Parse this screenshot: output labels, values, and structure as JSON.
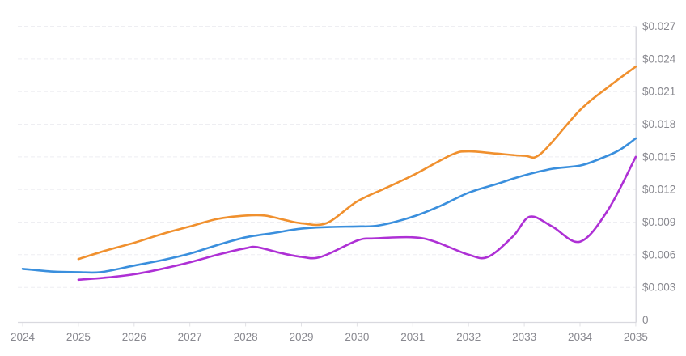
{
  "chart_data": {
    "type": "line",
    "title": "",
    "legend": {
      "visible": false
    },
    "grid": {
      "horizontal": true,
      "vertical": false,
      "style": "dashed"
    },
    "x_axis": {
      "tick_labels": [
        "2024",
        "2025",
        "2026",
        "2027",
        "2028",
        "2029",
        "2030",
        "2031",
        "2032",
        "2033",
        "2034",
        "2035"
      ],
      "tick_values": [
        2024,
        2025,
        2026,
        2027,
        2028,
        2029,
        2030,
        2031,
        2032,
        2033,
        2034,
        2035
      ],
      "range": [
        2024,
        2035
      ]
    },
    "y_axis": {
      "side": "right",
      "tick_labels": [
        "0",
        "$0.003",
        "$0.006",
        "$0.009",
        "$0.012",
        "$0.015",
        "$0.018",
        "$0.021",
        "$0.024",
        "$0.027"
      ],
      "tick_values": [
        0,
        0.003,
        0.006,
        0.009,
        0.012,
        0.015,
        0.018,
        0.021,
        0.024,
        0.027
      ],
      "range": [
        0,
        0.027
      ],
      "unit": "$"
    },
    "series": [
      {
        "name": "orange",
        "color": "#f0902e",
        "points": [
          [
            2025,
            0.0056
          ],
          [
            2025.5,
            0.0064
          ],
          [
            2026,
            0.0071
          ],
          [
            2026.5,
            0.0079
          ],
          [
            2027,
            0.0086
          ],
          [
            2027.5,
            0.0093
          ],
          [
            2028,
            0.0096
          ],
          [
            2028.35,
            0.0096
          ],
          [
            2028.7,
            0.0092
          ],
          [
            2029,
            0.0089
          ],
          [
            2029.45,
            0.0089
          ],
          [
            2030,
            0.0109
          ],
          [
            2030.5,
            0.0121
          ],
          [
            2031,
            0.0133
          ],
          [
            2031.7,
            0.0152
          ],
          [
            2032,
            0.0155
          ],
          [
            2032.5,
            0.0153
          ],
          [
            2033,
            0.0151
          ],
          [
            2033.3,
            0.0153
          ],
          [
            2034,
            0.0193
          ],
          [
            2034.5,
            0.0214
          ],
          [
            2035,
            0.0233
          ]
        ]
      },
      {
        "name": "blue",
        "color": "#3a8fdd",
        "points": [
          [
            2024,
            0.0047
          ],
          [
            2024.55,
            0.00445
          ],
          [
            2025,
            0.0044
          ],
          [
            2025.4,
            0.0044
          ],
          [
            2026,
            0.005
          ],
          [
            2026.5,
            0.0055
          ],
          [
            2027,
            0.0061
          ],
          [
            2027.5,
            0.0069
          ],
          [
            2028,
            0.0076
          ],
          [
            2028.5,
            0.008
          ],
          [
            2029,
            0.0084
          ],
          [
            2029.5,
            0.00855
          ],
          [
            2030,
            0.0086
          ],
          [
            2030.4,
            0.0087
          ],
          [
            2031,
            0.0095
          ],
          [
            2031.5,
            0.0105
          ],
          [
            2032,
            0.0117
          ],
          [
            2032.5,
            0.0125
          ],
          [
            2033,
            0.0133
          ],
          [
            2033.5,
            0.0139
          ],
          [
            2034,
            0.0142
          ],
          [
            2034.35,
            0.0148
          ],
          [
            2034.7,
            0.0156
          ],
          [
            2035,
            0.0167
          ]
        ]
      },
      {
        "name": "purple",
        "color": "#ae30d5",
        "points": [
          [
            2025,
            0.0037
          ],
          [
            2025.5,
            0.0039
          ],
          [
            2026,
            0.0042
          ],
          [
            2026.5,
            0.0047
          ],
          [
            2027,
            0.0053
          ],
          [
            2027.5,
            0.006
          ],
          [
            2028,
            0.0066
          ],
          [
            2028.2,
            0.0067
          ],
          [
            2028.6,
            0.0062
          ],
          [
            2029,
            0.0058
          ],
          [
            2029.35,
            0.0058
          ],
          [
            2030,
            0.0073
          ],
          [
            2030.3,
            0.0075
          ],
          [
            2031,
            0.0076
          ],
          [
            2031.4,
            0.0072
          ],
          [
            2032,
            0.006
          ],
          [
            2032.35,
            0.0058
          ],
          [
            2032.8,
            0.0077
          ],
          [
            2033.1,
            0.0095
          ],
          [
            2033.5,
            0.0086
          ],
          [
            2034,
            0.0072
          ],
          [
            2034.5,
            0.0101
          ],
          [
            2035,
            0.015
          ]
        ]
      }
    ]
  },
  "colors": {
    "background": "#ffffff",
    "grid": "#eeeef2",
    "axis": "#d9d9df",
    "tick": "#d6d6dc",
    "label": "#88888f"
  }
}
